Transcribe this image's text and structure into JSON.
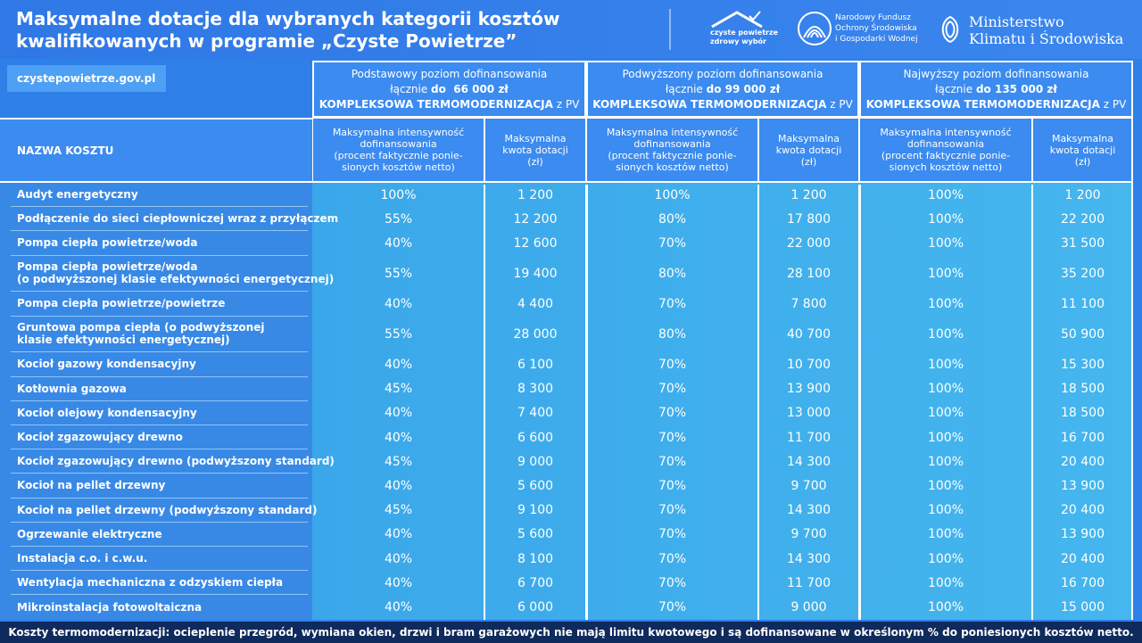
{
  "header": {
    "title": [
      "Maksymalne dotacje dla wybranych kategorii kosztów",
      "kwalifikowanych w programie „Czyste Powietrze”"
    ],
    "logos": {
      "program": [
        "czyste powietrze",
        "zdrowy wybór"
      ],
      "fund": [
        "Narodowy Fundusz",
        "Ochrony Środowiska",
        "i Gospodarki Wodnej"
      ],
      "ministry": [
        "Ministerstwo",
        "Klimatu i Środowiska"
      ]
    }
  },
  "url": "czystepowietrze.gov.pl",
  "levels": [
    {
      "name": "Podstawowy poziom dofinansowania",
      "prefix": "łącznie",
      "amount": "do  66 000 zł",
      "scope": "KOMPLEKSOWA TERMOMODERNIZACJA",
      "suffix": "z PV"
    },
    {
      "name": "Podwyższony poziom dofinansowania",
      "prefix": "łącznie",
      "amount": "do 99 000 zł",
      "scope": "KOMPLEKSOWA TERMOMODERNIZACJA",
      "suffix": "z PV"
    },
    {
      "name": "Najwyższy poziom dofinansowania",
      "prefix": "łącznie",
      "amount": "do 135 000 zł",
      "scope": "KOMPLEKSOWA TERMOMODERNIZACJA",
      "suffix": "z PV"
    }
  ],
  "table": {
    "name_header": "NAZWA KOSZTU",
    "intensity_header": [
      "Maksymalna intensywność",
      "dofinansowania",
      "(procent faktycznie ponie-",
      "sionych kosztów netto)"
    ],
    "amount_header": [
      "Maksymalna",
      "kwota dotacji",
      "(zł)"
    ],
    "rows": [
      {
        "name": [
          "Audyt energetyczny"
        ],
        "values": [
          "100%",
          "1 200",
          "100%",
          "1 200",
          "100%",
          "1 200"
        ]
      },
      {
        "name": [
          "Podłączenie do sieci ciepłowniczej wraz z przyłączem"
        ],
        "values": [
          "55%",
          "12 200",
          "80%",
          "17 800",
          "100%",
          "22 200"
        ]
      },
      {
        "name": [
          "Pompa ciepła powietrze/woda"
        ],
        "values": [
          "40%",
          "12 600",
          "70%",
          "22 000",
          "100%",
          "31 500"
        ]
      },
      {
        "name": [
          "Pompa ciepła powietrze/woda",
          "(o podwyższonej klasie efektywności energetycznej)"
        ],
        "values": [
          "55%",
          "19 400",
          "80%",
          "28 100",
          "100%",
          "35 200"
        ]
      },
      {
        "name": [
          "Pompa ciepła powietrze/powietrze"
        ],
        "values": [
          "40%",
          "4 400",
          "70%",
          "7 800",
          "100%",
          "11 100"
        ]
      },
      {
        "name": [
          "Gruntowa pompa ciepła (o podwyższonej",
          "klasie efektywności energetycznej)"
        ],
        "values": [
          "55%",
          "28 000",
          "80%",
          "40 700",
          "100%",
          "50 900"
        ]
      },
      {
        "name": [
          "Kocioł gazowy kondensacyjny"
        ],
        "values": [
          "40%",
          "6 100",
          "70%",
          "10 700",
          "100%",
          "15 300"
        ]
      },
      {
        "name": [
          "Kotłownia gazowa"
        ],
        "values": [
          "45%",
          "8 300",
          "70%",
          "13 900",
          "100%",
          "18 500"
        ]
      },
      {
        "name": [
          "Kocioł olejowy kondensacyjny"
        ],
        "values": [
          "40%",
          "7 400",
          "70%",
          "13 000",
          "100%",
          "18 500"
        ]
      },
      {
        "name": [
          "Kocioł zgazowujący drewno"
        ],
        "values": [
          "40%",
          "6 600",
          "70%",
          "11 700",
          "100%",
          "16 700"
        ]
      },
      {
        "name": [
          "Kocioł zgazowujący drewno (podwyższony standard)"
        ],
        "values": [
          "45%",
          "9 000",
          "70%",
          "14 300",
          "100%",
          "20 400"
        ]
      },
      {
        "name": [
          "Kocioł na pellet drzewny"
        ],
        "values": [
          "40%",
          "5 600",
          "70%",
          "9 700",
          "100%",
          "13 900"
        ]
      },
      {
        "name": [
          "Kocioł na pellet drzewny (podwyższony standard)"
        ],
        "values": [
          "45%",
          "9 100",
          "70%",
          "14 300",
          "100%",
          "20 400"
        ]
      },
      {
        "name": [
          "Ogrzewanie elektryczne"
        ],
        "values": [
          "40%",
          "5 600",
          "70%",
          "9 700",
          "100%",
          "13 900"
        ]
      },
      {
        "name": [
          "Instalacja c.o. i c.w.u."
        ],
        "values": [
          "40%",
          "8 100",
          "70%",
          "14 300",
          "100%",
          "20 400"
        ]
      },
      {
        "name": [
          "Wentylacja mechaniczna z odzyskiem ciepła"
        ],
        "values": [
          "40%",
          "6 700",
          "70%",
          "11 700",
          "100%",
          "16 700"
        ]
      },
      {
        "name": [
          "Mikroinstalacja fotowoltaiczna"
        ],
        "values": [
          "40%",
          "6 000",
          "70%",
          "9 000",
          "100%",
          "15 000"
        ]
      }
    ]
  },
  "footer": "Koszty  termomodernizacji: ocieplenie przegród, wymiana okien, drzwi i bram garażowych nie mają limitu kwotowego i są dofinansowane w określonym % do poniesionych kosztów netto."
}
